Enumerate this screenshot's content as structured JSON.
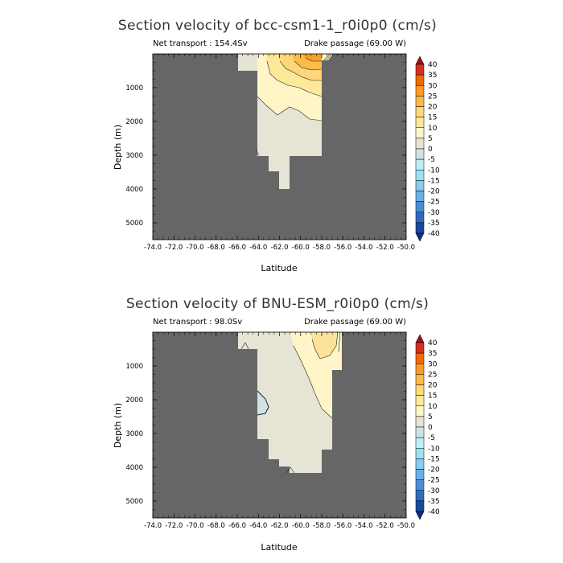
{
  "chart_data": [
    {
      "type": "heatmap",
      "title": "Section velocity of bcc-csm1-1_r0i0p0 (cm/s)",
      "subtitle_left": "Net transport : 154.4Sv",
      "subtitle_right": "Drake passage (69.00 W)",
      "xlabel": "Latitude",
      "ylabel": "Depth (m)",
      "xlim": [
        -74,
        -50
      ],
      "ylim": [
        5500,
        0
      ],
      "x_ticks": [
        "-74.0",
        "-72.0",
        "-70.0",
        "-68.0",
        "-66.0",
        "-64.0",
        "-62.0",
        "-60.0",
        "-58.0",
        "-56.0",
        "-54.0",
        "-52.0",
        "-50.0"
      ],
      "y_ticks": [
        "1000",
        "2000",
        "3000",
        "4000",
        "5000"
      ],
      "colorbar_levels": [
        "40",
        "35",
        "30",
        "25",
        "20",
        "15",
        "10",
        "5",
        "0",
        "-5",
        "-10",
        "-15",
        "-20",
        "-25",
        "-30",
        "-35",
        "-40"
      ],
      "net_transport_sv": 154.4,
      "section_longitude": "69.00 W"
    },
    {
      "type": "heatmap",
      "title": "Section velocity of BNU-ESM_r0i0p0 (cm/s)",
      "subtitle_left": "Net transport : 98.0Sv",
      "subtitle_right": "Drake passage (69.00 W)",
      "xlabel": "Latitude",
      "ylabel": "Depth (m)",
      "xlim": [
        -74,
        -50
      ],
      "ylim": [
        5500,
        0
      ],
      "x_ticks": [
        "-74.0",
        "-72.0",
        "-70.0",
        "-68.0",
        "-66.0",
        "-64.0",
        "-62.0",
        "-60.0",
        "-58.0",
        "-56.0",
        "-54.0",
        "-52.0",
        "-50.0"
      ],
      "y_ticks": [
        "1000",
        "2000",
        "3000",
        "4000",
        "5000"
      ],
      "colorbar_levels": [
        "40",
        "35",
        "30",
        "25",
        "20",
        "15",
        "10",
        "5",
        "0",
        "-5",
        "-10",
        "-15",
        "-20",
        "-25",
        "-30",
        "-35",
        "-40"
      ],
      "net_transport_sv": 98.0,
      "section_longitude": "69.00 W"
    }
  ],
  "colorbar_colors": [
    "#a50f15",
    "#d7301f",
    "#ef6c00",
    "#fb9a29",
    "#fdb94a",
    "#fed976",
    "#fee89a",
    "#fff5c6",
    "#e6e4d4",
    "#cfe3e6",
    "#bdeff5",
    "#9be2f3",
    "#86cdef",
    "#6ab2e8",
    "#4a8fd6",
    "#2f6cc0",
    "#1a4aa0",
    "#0d2f80"
  ],
  "land_color": "#666666"
}
